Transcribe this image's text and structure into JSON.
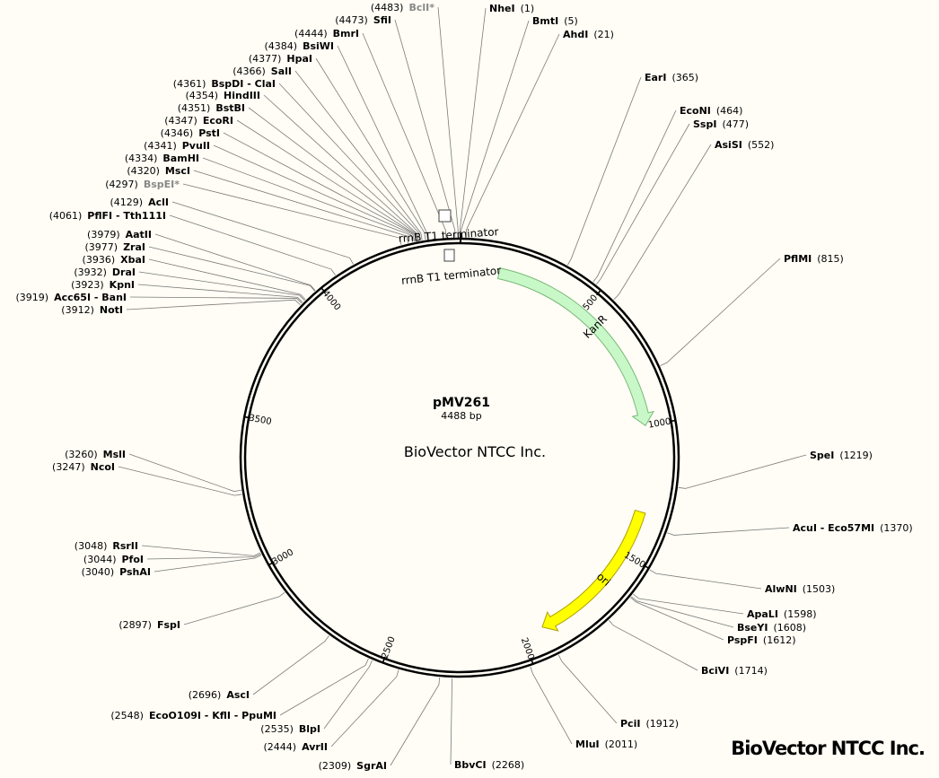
{
  "plasmid": {
    "name": "pMV261",
    "length_bp": 4488,
    "size_label": "4488 bp",
    "center_watermark": "BioVector NTCC Inc."
  },
  "brand": "BioVector NTCC Inc.",
  "ticks": [
    {
      "pos": 500,
      "label": "500"
    },
    {
      "pos": 1000,
      "label": "1000"
    },
    {
      "pos": 1500,
      "label": "1500"
    },
    {
      "pos": 2000,
      "label": "2000"
    },
    {
      "pos": 2500,
      "label": "2500"
    },
    {
      "pos": 3000,
      "label": "3000"
    },
    {
      "pos": 3500,
      "label": "3500"
    },
    {
      "pos": 4000,
      "label": "4000"
    }
  ],
  "features": [
    {
      "name": "KanR",
      "start": 150,
      "end": 1000,
      "color": "#c8f8c8",
      "stroke": "#78b878"
    },
    {
      "name": "ori",
      "start": 1330,
      "end": 1920,
      "color": "#ffff00",
      "stroke": "#b0a000"
    }
  ],
  "terminators": [
    {
      "label": "rrnB T1 terminator"
    },
    {
      "label": "rrnB T1 terminator"
    }
  ],
  "sites": [
    {
      "name": "NheI",
      "pos": 1,
      "pos_label": "(1)",
      "side": "right",
      "star": false
    },
    {
      "name": "BmtI",
      "pos": 5,
      "pos_label": "(5)",
      "side": "right",
      "star": false
    },
    {
      "name": "AhdI",
      "pos": 21,
      "pos_label": "(21)",
      "side": "right",
      "star": false
    },
    {
      "name": "EarI",
      "pos": 365,
      "pos_label": "(365)",
      "side": "right",
      "star": false
    },
    {
      "name": "EcoNI",
      "pos": 464,
      "pos_label": "(464)",
      "side": "right",
      "star": false
    },
    {
      "name": "SspI",
      "pos": 477,
      "pos_label": "(477)",
      "side": "right",
      "star": false
    },
    {
      "name": "AsiSI",
      "pos": 552,
      "pos_label": "(552)",
      "side": "right",
      "star": false
    },
    {
      "name": "PflMI",
      "pos": 815,
      "pos_label": "(815)",
      "side": "right",
      "star": false
    },
    {
      "name": "SpeI",
      "pos": 1219,
      "pos_label": "(1219)",
      "side": "right",
      "star": false
    },
    {
      "name": "AcuI - Eco57MI",
      "pos": 1370,
      "pos_label": "(1370)",
      "side": "right",
      "star": false
    },
    {
      "name": "AlwNI",
      "pos": 1503,
      "pos_label": "(1503)",
      "side": "right",
      "star": false
    },
    {
      "name": "ApaLI",
      "pos": 1598,
      "pos_label": "(1598)",
      "side": "right",
      "star": false
    },
    {
      "name": "BseYI",
      "pos": 1608,
      "pos_label": "(1608)",
      "side": "right",
      "star": false
    },
    {
      "name": "PspFI",
      "pos": 1612,
      "pos_label": "(1612)",
      "side": "right",
      "star": false
    },
    {
      "name": "BciVI",
      "pos": 1714,
      "pos_label": "(1714)",
      "side": "right",
      "star": false
    },
    {
      "name": "PciI",
      "pos": 1912,
      "pos_label": "(1912)",
      "side": "right",
      "star": false
    },
    {
      "name": "MluI",
      "pos": 2011,
      "pos_label": "(2011)",
      "side": "right",
      "star": false
    },
    {
      "name": "BbvCI",
      "pos": 2268,
      "pos_label": "(2268)",
      "side": "right",
      "star": false
    },
    {
      "name": "SgrAI",
      "pos": 2309,
      "pos_label": "(2309)",
      "side": "left",
      "star": false
    },
    {
      "name": "AvrII",
      "pos": 2444,
      "pos_label": "(2444)",
      "side": "left",
      "star": false
    },
    {
      "name": "BlpI",
      "pos": 2535,
      "pos_label": "(2535)",
      "side": "left",
      "star": false
    },
    {
      "name": "EcoO109I - KflI - PpuMI",
      "pos": 2548,
      "pos_label": "(2548)",
      "side": "left",
      "star": false
    },
    {
      "name": "AscI",
      "pos": 2696,
      "pos_label": "(2696)",
      "side": "left",
      "star": false
    },
    {
      "name": "FspI",
      "pos": 2897,
      "pos_label": "(2897)",
      "side": "left",
      "star": false
    },
    {
      "name": "PshAI",
      "pos": 3040,
      "pos_label": "(3040)",
      "side": "left",
      "star": false
    },
    {
      "name": "PfoI",
      "pos": 3044,
      "pos_label": "(3044)",
      "side": "left",
      "star": false
    },
    {
      "name": "RsrII",
      "pos": 3048,
      "pos_label": "(3048)",
      "side": "left",
      "star": false
    },
    {
      "name": "NcoI",
      "pos": 3247,
      "pos_label": "(3247)",
      "side": "left",
      "star": false
    },
    {
      "name": "MslI",
      "pos": 3260,
      "pos_label": "(3260)",
      "side": "left",
      "star": false
    },
    {
      "name": "NotI",
      "pos": 3912,
      "pos_label": "(3912)",
      "side": "left",
      "star": false
    },
    {
      "name": "Acc65I - BanI",
      "pos": 3919,
      "pos_label": "(3919)",
      "side": "left",
      "star": false
    },
    {
      "name": "KpnI",
      "pos": 3923,
      "pos_label": "(3923)",
      "side": "left",
      "star": false
    },
    {
      "name": "DraI",
      "pos": 3932,
      "pos_label": "(3932)",
      "side": "left",
      "star": false
    },
    {
      "name": "XbaI",
      "pos": 3936,
      "pos_label": "(3936)",
      "side": "left",
      "star": false
    },
    {
      "name": "ZraI",
      "pos": 3977,
      "pos_label": "(3977)",
      "side": "left",
      "star": false
    },
    {
      "name": "AatII",
      "pos": 3979,
      "pos_label": "(3979)",
      "side": "left",
      "star": false
    },
    {
      "name": "PflFI - Tth111I",
      "pos": 4061,
      "pos_label": "(4061)",
      "side": "left",
      "star": false
    },
    {
      "name": "AclI",
      "pos": 4129,
      "pos_label": "(4129)",
      "side": "left",
      "star": false
    },
    {
      "name": "BspEI*",
      "pos": 4297,
      "pos_label": "(4297)",
      "side": "left",
      "star": true
    },
    {
      "name": "MscI",
      "pos": 4320,
      "pos_label": "(4320)",
      "side": "left",
      "star": false
    },
    {
      "name": "BamHI",
      "pos": 4334,
      "pos_label": "(4334)",
      "side": "left",
      "star": false
    },
    {
      "name": "PvuII",
      "pos": 4341,
      "pos_label": "(4341)",
      "side": "left",
      "star": false
    },
    {
      "name": "PstI",
      "pos": 4346,
      "pos_label": "(4346)",
      "side": "left",
      "star": false
    },
    {
      "name": "EcoRI",
      "pos": 4347,
      "pos_label": "(4347)",
      "side": "left",
      "star": false
    },
    {
      "name": "BstBI",
      "pos": 4351,
      "pos_label": "(4351)",
      "side": "left",
      "star": false
    },
    {
      "name": "HindIII",
      "pos": 4354,
      "pos_label": "(4354)",
      "side": "left",
      "star": false
    },
    {
      "name": "BspDI - ClaI",
      "pos": 4361,
      "pos_label": "(4361)",
      "side": "left",
      "star": false
    },
    {
      "name": "SalI",
      "pos": 4366,
      "pos_label": "(4366)",
      "side": "left",
      "star": false
    },
    {
      "name": "HpaI",
      "pos": 4377,
      "pos_label": "(4377)",
      "side": "left",
      "star": false
    },
    {
      "name": "BsiWI",
      "pos": 4384,
      "pos_label": "(4384)",
      "side": "left",
      "star": false
    },
    {
      "name": "BmrI",
      "pos": 4444,
      "pos_label": "(4444)",
      "side": "left",
      "star": false
    },
    {
      "name": "SfiI",
      "pos": 4473,
      "pos_label": "(4473)",
      "side": "left",
      "star": false
    },
    {
      "name": "BclI*",
      "pos": 4483,
      "pos_label": "(4483)",
      "side": "left",
      "star": true
    }
  ]
}
